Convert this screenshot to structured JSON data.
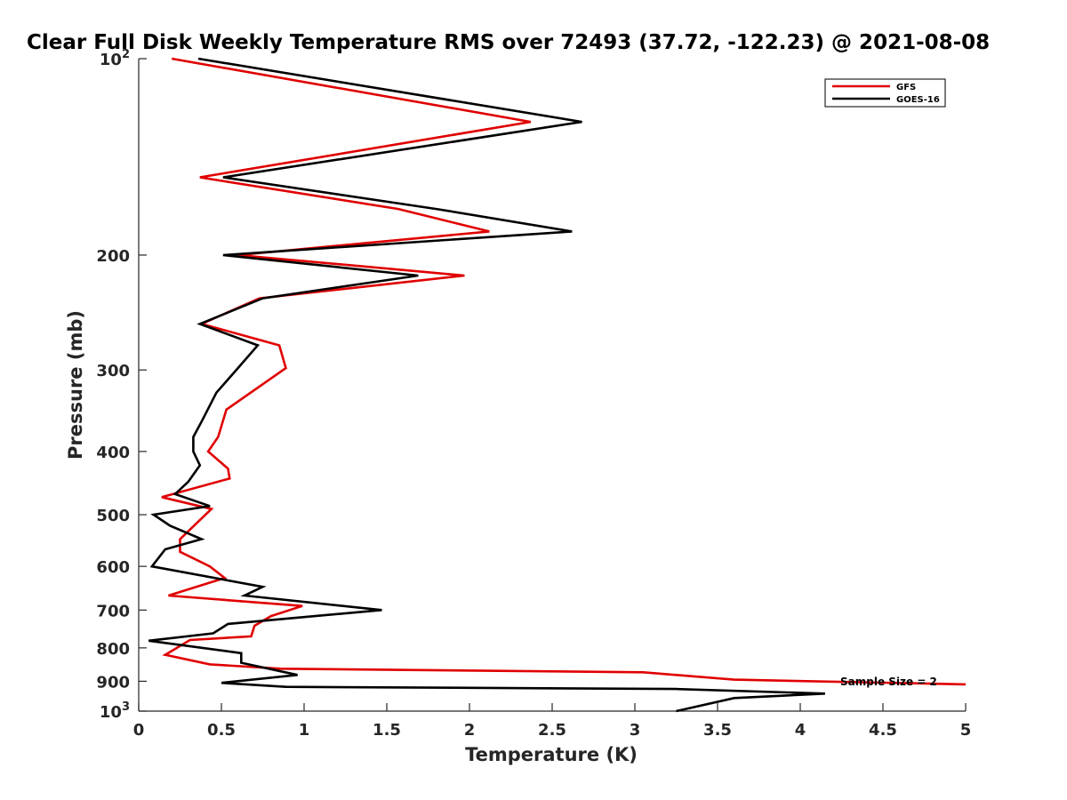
{
  "chart_data": {
    "type": "line",
    "title": "Clear Full Disk Weekly Temperature RMS over 72493 (37.72, -122.23) @ 2021-08-08",
    "xlabel": "Temperature (K)",
    "ylabel": "Pressure (mb)",
    "xlim": [
      0,
      5
    ],
    "ylim": [
      100,
      1000
    ],
    "y_scale": "log",
    "y_reversed": true,
    "grid": false,
    "legend_position": "top-right",
    "x_ticks": [
      {
        "value": 0,
        "label": "0"
      },
      {
        "value": 0.5,
        "label": "0.5"
      },
      {
        "value": 1,
        "label": "1"
      },
      {
        "value": 1.5,
        "label": "1.5"
      },
      {
        "value": 2,
        "label": "2"
      },
      {
        "value": 2.5,
        "label": "2.5"
      },
      {
        "value": 3,
        "label": "3"
      },
      {
        "value": 3.5,
        "label": "3.5"
      },
      {
        "value": 4,
        "label": "4"
      },
      {
        "value": 4.5,
        "label": "4.5"
      },
      {
        "value": 5,
        "label": "5"
      }
    ],
    "y_ticks": [
      {
        "value": 100,
        "label": "10",
        "sup": "2"
      },
      {
        "value": 200,
        "label": "200"
      },
      {
        "value": 300,
        "label": "300"
      },
      {
        "value": 400,
        "label": "400"
      },
      {
        "value": 500,
        "label": "500"
      },
      {
        "value": 600,
        "label": "600"
      },
      {
        "value": 700,
        "label": "700"
      },
      {
        "value": 800,
        "label": "800"
      },
      {
        "value": 900,
        "label": "900"
      },
      {
        "value": 1000,
        "label": "10",
        "sup": "3"
      }
    ],
    "annotation": "Sample Size = 2",
    "series": [
      {
        "name": "GFS",
        "color": "#e00000",
        "points": [
          {
            "x": 0.2,
            "p": 100
          },
          {
            "x": 2.37,
            "p": 125
          },
          {
            "x": 0.37,
            "p": 152
          },
          {
            "x": 1.57,
            "p": 170
          },
          {
            "x": 2.12,
            "p": 184
          },
          {
            "x": 0.6,
            "p": 200
          },
          {
            "x": 1.97,
            "p": 215
          },
          {
            "x": 0.73,
            "p": 233
          },
          {
            "x": 0.38,
            "p": 255
          },
          {
            "x": 0.85,
            "p": 275
          },
          {
            "x": 0.89,
            "p": 298
          },
          {
            "x": 0.53,
            "p": 345
          },
          {
            "x": 0.48,
            "p": 380
          },
          {
            "x": 0.42,
            "p": 400
          },
          {
            "x": 0.54,
            "p": 425
          },
          {
            "x": 0.55,
            "p": 440
          },
          {
            "x": 0.14,
            "p": 470
          },
          {
            "x": 0.44,
            "p": 490
          },
          {
            "x": 0.25,
            "p": 545
          },
          {
            "x": 0.25,
            "p": 570
          },
          {
            "x": 0.43,
            "p": 600
          },
          {
            "x": 0.52,
            "p": 625
          },
          {
            "x": 0.18,
            "p": 665
          },
          {
            "x": 0.99,
            "p": 690
          },
          {
            "x": 0.8,
            "p": 715
          },
          {
            "x": 0.7,
            "p": 740
          },
          {
            "x": 0.68,
            "p": 768
          },
          {
            "x": 0.31,
            "p": 778
          },
          {
            "x": 0.16,
            "p": 820
          },
          {
            "x": 0.43,
            "p": 848
          },
          {
            "x": 0.86,
            "p": 861
          },
          {
            "x": 3.05,
            "p": 872
          },
          {
            "x": 3.6,
            "p": 895
          },
          {
            "x": 5.0,
            "p": 910
          }
        ]
      },
      {
        "name": "GOES-16",
        "color": "#000000",
        "points": [
          {
            "x": 0.36,
            "p": 100
          },
          {
            "x": 2.68,
            "p": 125
          },
          {
            "x": 0.51,
            "p": 152
          },
          {
            "x": 1.8,
            "p": 170
          },
          {
            "x": 2.62,
            "p": 184
          },
          {
            "x": 0.51,
            "p": 200
          },
          {
            "x": 1.69,
            "p": 215
          },
          {
            "x": 0.75,
            "p": 233
          },
          {
            "x": 0.37,
            "p": 255
          },
          {
            "x": 0.72,
            "p": 275
          },
          {
            "x": 0.6,
            "p": 298
          },
          {
            "x": 0.47,
            "p": 325
          },
          {
            "x": 0.38,
            "p": 360
          },
          {
            "x": 0.33,
            "p": 380
          },
          {
            "x": 0.33,
            "p": 400
          },
          {
            "x": 0.37,
            "p": 420
          },
          {
            "x": 0.3,
            "p": 445
          },
          {
            "x": 0.22,
            "p": 465
          },
          {
            "x": 0.43,
            "p": 485
          },
          {
            "x": 0.09,
            "p": 500
          },
          {
            "x": 0.19,
            "p": 520
          },
          {
            "x": 0.38,
            "p": 545
          },
          {
            "x": 0.16,
            "p": 565
          },
          {
            "x": 0.08,
            "p": 600
          },
          {
            "x": 0.75,
            "p": 645
          },
          {
            "x": 0.64,
            "p": 665
          },
          {
            "x": 1.47,
            "p": 700
          },
          {
            "x": 0.54,
            "p": 735
          },
          {
            "x": 0.45,
            "p": 760
          },
          {
            "x": 0.06,
            "p": 780
          },
          {
            "x": 0.62,
            "p": 815
          },
          {
            "x": 0.62,
            "p": 843
          },
          {
            "x": 0.96,
            "p": 880
          },
          {
            "x": 0.5,
            "p": 905
          },
          {
            "x": 0.89,
            "p": 918
          },
          {
            "x": 3.25,
            "p": 925
          },
          {
            "x": 4.15,
            "p": 940
          },
          {
            "x": 3.6,
            "p": 955
          },
          {
            "x": 3.25,
            "p": 1000
          }
        ]
      }
    ]
  }
}
